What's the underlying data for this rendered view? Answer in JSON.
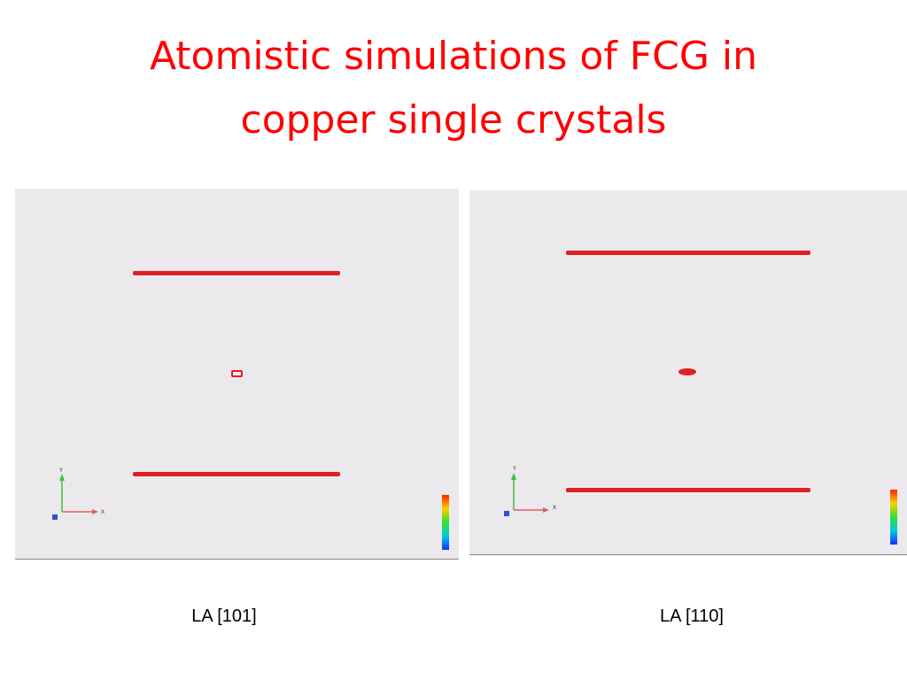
{
  "slide": {
    "title_lines": [
      "Atomistic simulations of FCG in",
      "copper single crystals"
    ],
    "panels": [
      {
        "caption": "LA [101]",
        "axis_y": "Y",
        "axis_x": "X"
      },
      {
        "caption": "LA [110]",
        "axis_y": "Y",
        "axis_x": "X"
      }
    ]
  }
}
